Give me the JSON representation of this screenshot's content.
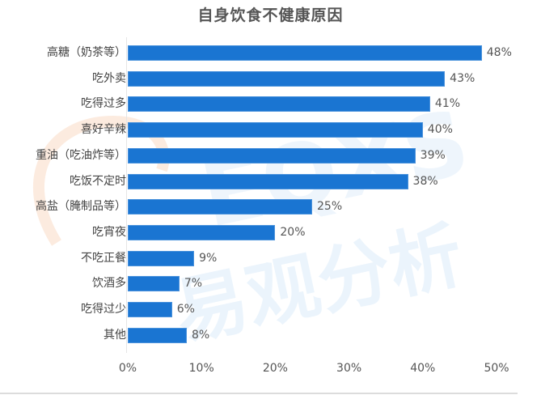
{
  "chart_data": {
    "type": "bar",
    "orientation": "horizontal",
    "title": "自身饮食不健康原因",
    "xlabel": "",
    "ylabel": "",
    "categories": [
      "高糖（奶茶等）",
      "吃外卖",
      "吃得过多",
      "喜好辛辣",
      "重油（吃油炸等）",
      "吃饭不定时",
      "高盐（腌制品等）",
      "吃宵夜",
      "不吃正餐",
      "饮酒多",
      "吃得过少",
      "其他"
    ],
    "values": [
      48,
      43,
      41,
      40,
      39,
      38,
      25,
      20,
      9,
      7,
      6,
      8
    ],
    "value_labels": [
      "48%",
      "43%",
      "41%",
      "40%",
      "39%",
      "38%",
      "25%",
      "20%",
      "9%",
      "7%",
      "6%",
      "8%"
    ],
    "unit": "%",
    "xlim": [
      0,
      50
    ],
    "x_ticks": [
      0,
      10,
      20,
      30,
      40,
      50
    ],
    "x_tick_labels": [
      "0%",
      "10%",
      "20%",
      "30%",
      "40%",
      "50%"
    ],
    "grid": false,
    "legend": null,
    "bar_color": "#1a75d2",
    "watermark": "易观分析"
  }
}
